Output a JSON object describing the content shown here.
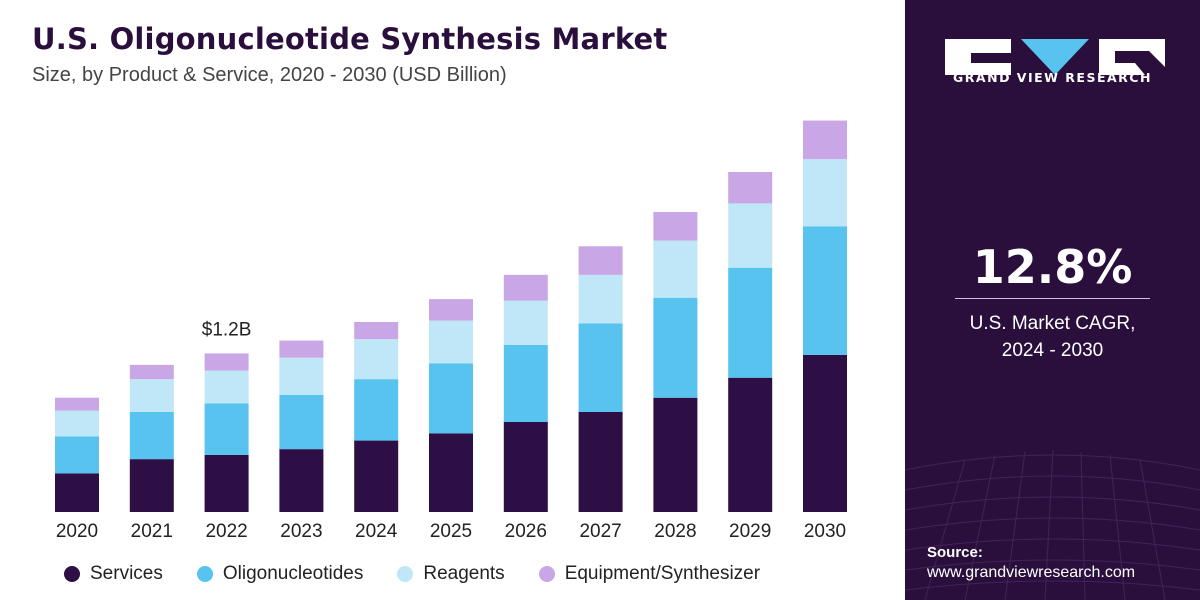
{
  "header": {
    "title": "U.S. Oligonucleotide Synthesis Market",
    "subtitle": "Size, by Product & Service, 2020 - 2030 (USD Billion)"
  },
  "chart_data": {
    "type": "bar",
    "stacked": true,
    "categories": [
      "2020",
      "2021",
      "2022",
      "2023",
      "2024",
      "2025",
      "2026",
      "2027",
      "2028",
      "2029",
      "2030"
    ],
    "series": [
      {
        "name": "Services",
        "color": "#2d0f45",
        "values": [
          0.27,
          0.37,
          0.4,
          0.44,
          0.5,
          0.55,
          0.63,
          0.7,
          0.8,
          0.94,
          1.1
        ]
      },
      {
        "name": "Oligonucleotides",
        "color": "#58c3ee",
        "values": [
          0.26,
          0.33,
          0.36,
          0.38,
          0.43,
          0.49,
          0.54,
          0.62,
          0.7,
          0.77,
          0.9
        ]
      },
      {
        "name": "Reagents",
        "color": "#bfe7f8",
        "values": [
          0.18,
          0.23,
          0.23,
          0.26,
          0.28,
          0.3,
          0.31,
          0.34,
          0.4,
          0.45,
          0.47
        ]
      },
      {
        "name": "Equipment/Synthesizer",
        "color": "#c9a6e6",
        "values": [
          0.09,
          0.1,
          0.12,
          0.12,
          0.12,
          0.15,
          0.18,
          0.2,
          0.2,
          0.22,
          0.27
        ]
      }
    ],
    "ylim": [
      0,
      2.8
    ],
    "grid": false,
    "legend_position": "bottom",
    "annotations": [
      {
        "category": "2022",
        "text": "$1.2B"
      }
    ]
  },
  "panel": {
    "brand": "GRAND VIEW RESEARCH",
    "cagr_value": "12.8%",
    "cagr_label_line1": "U.S. Market CAGR,",
    "cagr_label_line2": "2024 - 2030",
    "source_label": "Source:",
    "source_url": "www.grandviewresearch.com"
  }
}
